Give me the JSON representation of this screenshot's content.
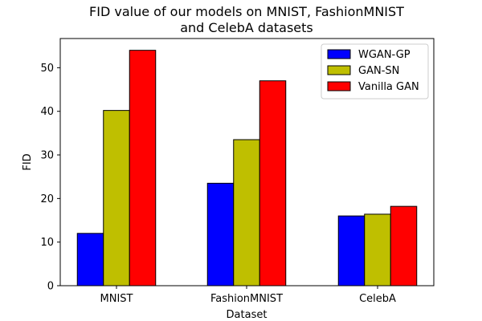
{
  "chart_data": {
    "type": "bar",
    "title_line1": "FID value of our models on MNIST, FashionMNIST",
    "title_line2": "and CelebA datasets",
    "xlabel": "Dataset",
    "ylabel": "FID",
    "categories": [
      "MNIST",
      "FashionMNIST",
      "CelebA"
    ],
    "ylim": [
      0,
      56.7
    ],
    "yticks": [
      0,
      10,
      20,
      30,
      40,
      50
    ],
    "legend_position": "top-right",
    "grid": false,
    "series": [
      {
        "name": "WGAN-GP",
        "color": "#0000ff",
        "values": [
          12.0,
          23.5,
          16.0
        ]
      },
      {
        "name": "GAN-SN",
        "color": "#bfbf00",
        "values": [
          40.2,
          33.5,
          16.4
        ]
      },
      {
        "name": "Vanilla GAN",
        "color": "#ff0000",
        "values": [
          54.0,
          47.0,
          18.2
        ]
      }
    ]
  }
}
